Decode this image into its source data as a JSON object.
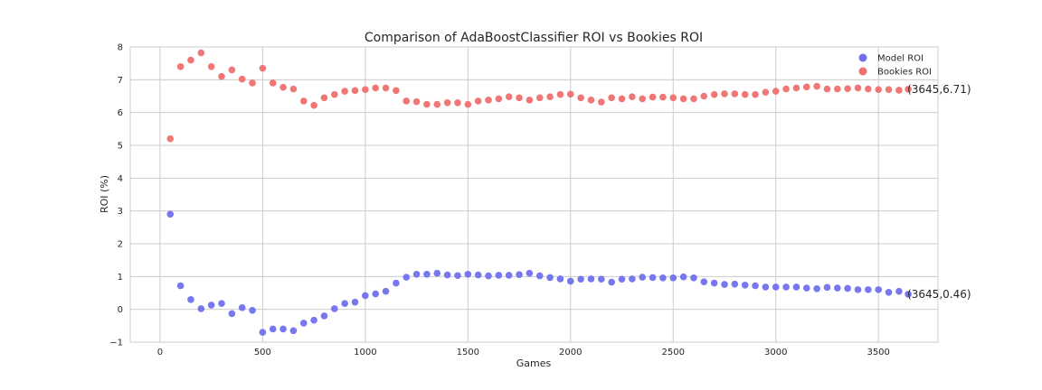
{
  "chart_data": {
    "type": "scatter",
    "title": "Comparison of AdaBoostClassifier ROI vs Bookies ROI",
    "xlabel": "Games",
    "ylabel": "ROI (%)",
    "xlim": [
      -145,
      3790
    ],
    "ylim": [
      -1,
      8
    ],
    "xticks": [
      0,
      500,
      1000,
      1500,
      2000,
      2500,
      3000,
      3500
    ],
    "yticks": [
      -1,
      0,
      1,
      2,
      3,
      4,
      5,
      6,
      7,
      8
    ],
    "grid": true,
    "legend_position": "top-right",
    "x": [
      50,
      100,
      150,
      200,
      250,
      300,
      350,
      400,
      450,
      500,
      550,
      600,
      650,
      700,
      750,
      800,
      850,
      900,
      950,
      1000,
      1050,
      1100,
      1150,
      1200,
      1250,
      1300,
      1350,
      1400,
      1450,
      1500,
      1550,
      1600,
      1650,
      1700,
      1750,
      1800,
      1850,
      1900,
      1950,
      2000,
      2050,
      2100,
      2150,
      2200,
      2250,
      2300,
      2350,
      2400,
      2450,
      2500,
      2550,
      2600,
      2650,
      2700,
      2750,
      2800,
      2850,
      2900,
      2950,
      3000,
      3050,
      3100,
      3150,
      3200,
      3250,
      3300,
      3350,
      3400,
      3450,
      3500,
      3550,
      3600,
      3645
    ],
    "series": [
      {
        "name": "Model ROI",
        "color": "#7070ee",
        "values": [
          2.9,
          0.72,
          0.3,
          0.02,
          0.13,
          0.18,
          -0.13,
          0.05,
          -0.03,
          -0.7,
          -0.6,
          -0.6,
          -0.65,
          -0.42,
          -0.33,
          -0.2,
          0.02,
          0.18,
          0.22,
          0.42,
          0.47,
          0.55,
          0.8,
          0.98,
          1.07,
          1.07,
          1.1,
          1.05,
          1.03,
          1.07,
          1.05,
          1.02,
          1.04,
          1.04,
          1.06,
          1.1,
          1.02,
          0.97,
          0.93,
          0.86,
          0.92,
          0.93,
          0.92,
          0.83,
          0.92,
          0.93,
          0.98,
          0.97,
          0.96,
          0.96,
          0.99,
          0.96,
          0.84,
          0.8,
          0.76,
          0.77,
          0.74,
          0.72,
          0.68,
          0.68,
          0.68,
          0.68,
          0.65,
          0.63,
          0.67,
          0.65,
          0.64,
          0.6,
          0.6,
          0.6,
          0.52,
          0.55,
          0.46
        ]
      },
      {
        "name": "Bookies ROI",
        "color": "#f07070",
        "values": [
          5.2,
          7.4,
          7.6,
          7.82,
          7.4,
          7.1,
          7.3,
          7.02,
          6.9,
          7.35,
          6.9,
          6.77,
          6.72,
          6.35,
          6.22,
          6.45,
          6.55,
          6.65,
          6.67,
          6.7,
          6.75,
          6.75,
          6.67,
          6.35,
          6.33,
          6.25,
          6.25,
          6.3,
          6.3,
          6.25,
          6.35,
          6.38,
          6.42,
          6.48,
          6.45,
          6.38,
          6.45,
          6.48,
          6.55,
          6.56,
          6.45,
          6.38,
          6.32,
          6.45,
          6.42,
          6.48,
          6.42,
          6.47,
          6.47,
          6.45,
          6.42,
          6.42,
          6.5,
          6.55,
          6.57,
          6.57,
          6.55,
          6.55,
          6.62,
          6.65,
          6.72,
          6.75,
          6.78,
          6.8,
          6.72,
          6.72,
          6.73,
          6.75,
          6.72,
          6.7,
          6.7,
          6.68,
          6.71
        ]
      }
    ],
    "annotations": [
      {
        "x": 3645,
        "y": 6.71,
        "text": "(3645,6.71)"
      },
      {
        "x": 3645,
        "y": 0.46,
        "text": "(3645,0.46)"
      }
    ]
  }
}
